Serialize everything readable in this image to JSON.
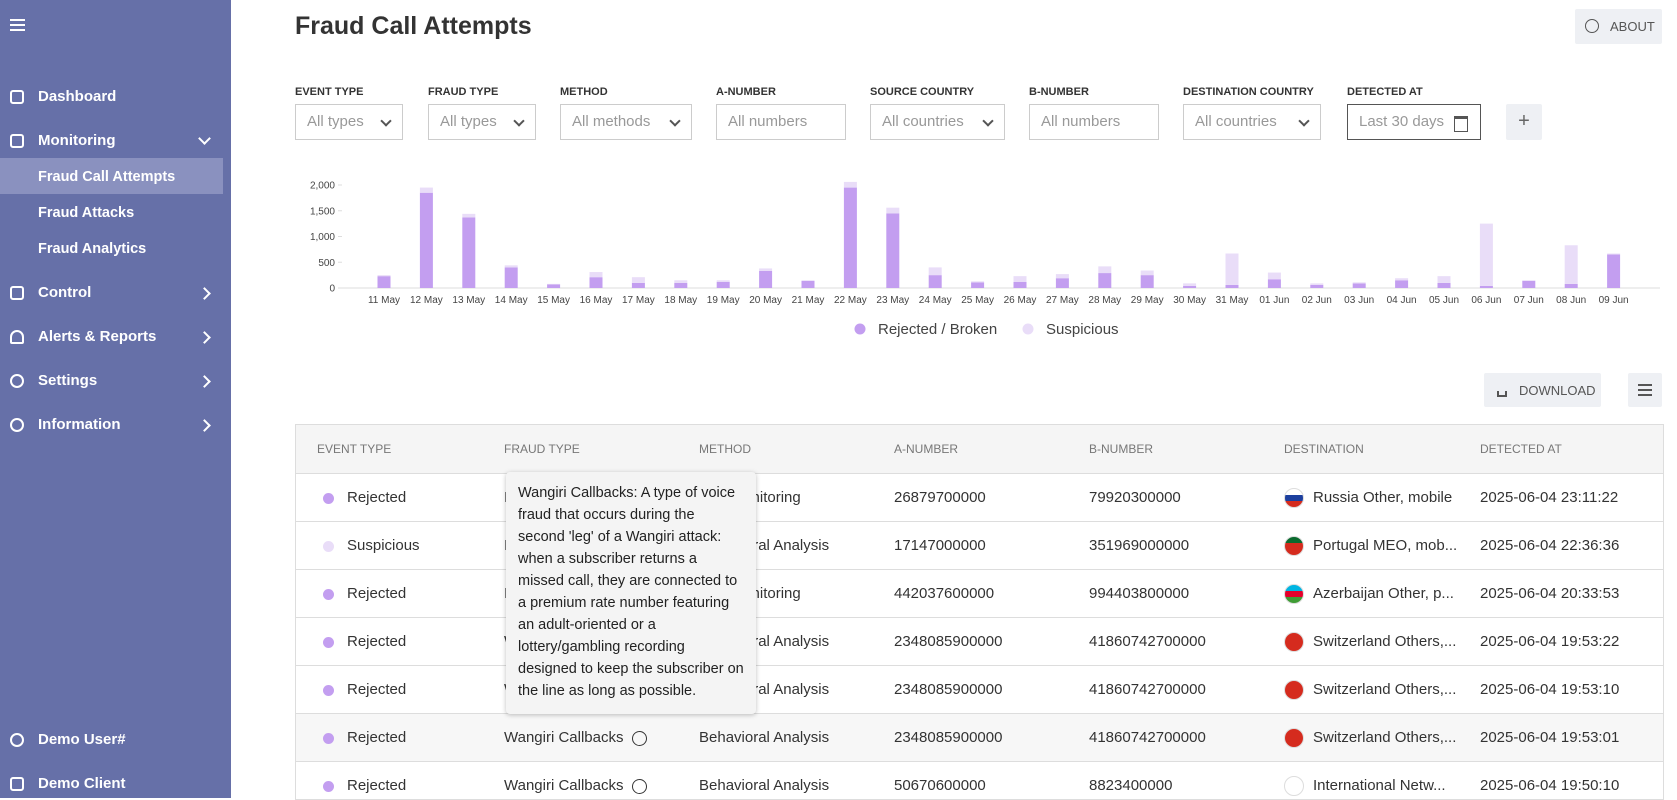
{
  "sidebar": {
    "menu": [
      "Dashboard",
      "Monitoring",
      "Fraud Call Attempts",
      "Fraud Attacks",
      "Fraud Analytics",
      "Control",
      "Alerts & Reports",
      "Settings",
      "Information"
    ],
    "user": "Demo User#",
    "client": "Demo Client"
  },
  "header": {
    "title": "Fraud Call Attempts",
    "about": "ABOUT"
  },
  "filters": [
    {
      "label": "EVENT TYPE",
      "placeholder": "All types"
    },
    {
      "label": "FRAUD TYPE",
      "placeholder": "All types"
    },
    {
      "label": "METHOD",
      "placeholder": "All methods"
    },
    {
      "label": "A-NUMBER",
      "placeholder": "All numbers"
    },
    {
      "label": "SOURCE COUNTRY",
      "placeholder": "All countries"
    },
    {
      "label": "B-NUMBER",
      "placeholder": "All numbers"
    },
    {
      "label": "DESTINATION COUNTRY",
      "placeholder": "All countries"
    },
    {
      "label": "DETECTED AT",
      "placeholder": "Last 30 days"
    }
  ],
  "chart_data": {
    "type": "bar",
    "stacked": true,
    "categories": [
      "11 May",
      "12 May",
      "13 May",
      "14 May",
      "15 May",
      "16 May",
      "17 May",
      "18 May",
      "19 May",
      "20 May",
      "21 May",
      "22 May",
      "23 May",
      "24 May",
      "25 May",
      "26 May",
      "27 May",
      "28 May",
      "29 May",
      "30 May",
      "31 May",
      "01 Jun",
      "02 Jun",
      "03 Jun",
      "04 Jun",
      "05 Jun",
      "06 Jun",
      "07 Jun",
      "08 Jun",
      "09 Jun"
    ],
    "series": [
      {
        "name": "Rejected / Broken",
        "color": "#c39ef0",
        "values": [
          230,
          1850,
          1370,
          400,
          70,
          210,
          100,
          100,
          120,
          330,
          140,
          1950,
          1450,
          250,
          110,
          120,
          190,
          290,
          250,
          40,
          60,
          170,
          60,
          90,
          150,
          100,
          40,
          140,
          80,
          650
        ]
      },
      {
        "name": "Suspicious",
        "color": "#e9ddf8",
        "values": [
          20,
          100,
          70,
          40,
          10,
          100,
          110,
          50,
          30,
          50,
          10,
          110,
          110,
          150,
          20,
          110,
          80,
          130,
          90,
          50,
          610,
          130,
          30,
          20,
          40,
          130,
          1210,
          10,
          750,
          20
        ]
      }
    ],
    "ylim": [
      0,
      2000
    ],
    "yticks": [
      0,
      500,
      {
        "value": 1000,
        "label": "1,000"
      },
      {
        "value": 1500,
        "label": "1,500"
      },
      {
        "value": 2000,
        "label": "2,000"
      }
    ],
    "grid": false,
    "legend": "bottom"
  },
  "actions": {
    "download": "DOWNLOAD"
  },
  "table": {
    "columns": [
      "EVENT TYPE",
      "FRAUD TYPE",
      "METHOD",
      "A-NUMBER",
      "B-NUMBER",
      "DESTINATION",
      "DETECTED AT"
    ],
    "rows": [
      [
        "Rejected",
        "IRSF",
        "Live Monitoring",
        "26879700000",
        "79920300000",
        "Russia Other, mobile",
        "2025-06-04 23:11:22"
      ],
      [
        "Suspicious",
        "IRSF",
        "Behavioral Analysis",
        "17147000000",
        "351969000000",
        "Portugal MEO, mob...",
        "2025-06-04 22:36:36"
      ],
      [
        "Rejected",
        "IRSF",
        "Live Monitoring",
        "442037600000",
        "994403800000",
        "Azerbaijan Other, p...",
        "2025-06-04 20:33:53"
      ],
      [
        "Rejected",
        "Wangiri Callbacks",
        "Behavioral Analysis",
        "2348085900000",
        "41860742700000",
        "Switzerland Others,...",
        "2025-06-04 19:53:22"
      ],
      [
        "Rejected",
        "Wangiri Callbacks",
        "Behavioral Analysis",
        "2348085900000",
        "41860742700000",
        "Switzerland Others,...",
        "2025-06-04 19:53:10"
      ],
      [
        "Rejected",
        "Wangiri Callbacks",
        "Behavioral Analysis",
        "2348085900000",
        "41860742700000",
        "Switzerland Others,...",
        "2025-06-04 19:53:01"
      ],
      [
        "Rejected",
        "Wangiri Callbacks",
        "Behavioral Analysis",
        "50670600000",
        "8823400000",
        "International Netw...",
        "2025-06-04 19:50:10"
      ]
    ]
  },
  "tooltip": "Wangiri Callbacks: A type of voice fraud that occurs during the second 'leg' of a Wangiri attack: when a subscriber returns a missed call, they are connected to a premium rate number featuring an adult-oriented or a lottery/gambling recording designed to keep the subscriber on the line as long as possible."
}
